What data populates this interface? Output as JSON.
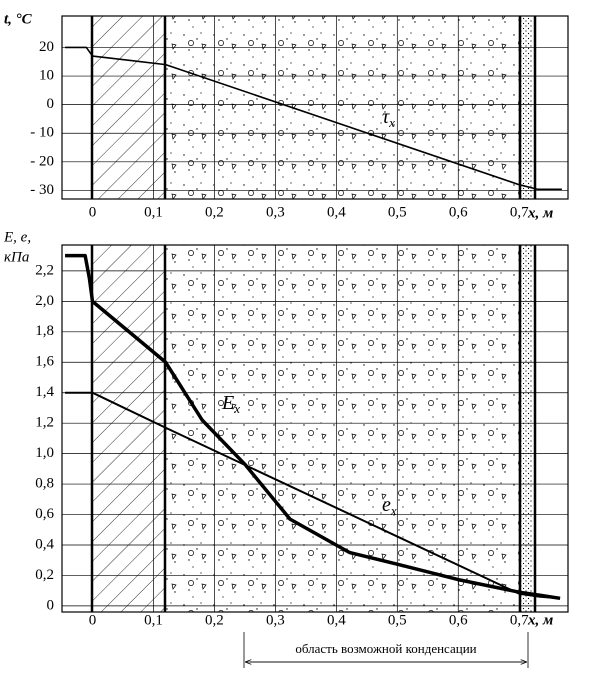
{
  "chart_data": [
    {
      "type": "line",
      "ylabel": "t, °C",
      "xlabel": "x, м",
      "xlim": [
        -0.05,
        0.78
      ],
      "ylim": [
        -33,
        31
      ],
      "grid": true,
      "xticks": [
        0,
        {
          "value": 0.1,
          "label": "0,1"
        },
        {
          "value": 0.2,
          "label": "0,2"
        },
        {
          "value": 0.3,
          "label": "0,3"
        },
        {
          "value": 0.4,
          "label": "0,4"
        },
        {
          "value": 0.5,
          "label": "0,5"
        },
        {
          "value": 0.6,
          "label": "0,6"
        },
        {
          "value": 0.7,
          "label": "0,7"
        }
      ],
      "yticks": [
        20,
        10,
        0,
        {
          "value": -10,
          "label": "- 10"
        },
        {
          "value": -20,
          "label": "- 20"
        },
        {
          "value": -30,
          "label": "- 30"
        }
      ],
      "series": [
        {
          "name": "τ",
          "subscript": "x",
          "color": "#000000",
          "line_width": 1.6,
          "x": [
            -0.045,
            -0.01,
            0,
            0.12,
            0.7,
            0.73,
            0.77
          ],
          "values": [
            20,
            20,
            17,
            14,
            -28,
            -29.6,
            -29.6
          ]
        }
      ]
    },
    {
      "type": "line",
      "ylabel": [
        "E, e,",
        "кПа"
      ],
      "xlabel": "x, м",
      "xlim": [
        -0.05,
        0.78
      ],
      "ylim": [
        -0.04,
        2.37
      ],
      "grid": true,
      "xticks": [
        0,
        {
          "value": 0.1,
          "label": "0,1"
        },
        {
          "value": 0.2,
          "label": "0,2"
        },
        {
          "value": 0.3,
          "label": "0,3"
        },
        {
          "value": 0.4,
          "label": "0,4"
        },
        {
          "value": 0.5,
          "label": "0,5"
        },
        {
          "value": 0.6,
          "label": "0,6"
        },
        {
          "value": 0.7,
          "label": "0,7"
        }
      ],
      "yticks": [
        0,
        {
          "value": 0.2,
          "label": "0,2"
        },
        {
          "value": 0.4,
          "label": "0,4"
        },
        {
          "value": 0.6,
          "label": "0,6"
        },
        {
          "value": 0.8,
          "label": "0,8"
        },
        {
          "value": 1.0,
          "label": "1,0"
        },
        {
          "value": 1.2,
          "label": "1,2"
        },
        {
          "value": 1.4,
          "label": "1,4"
        },
        {
          "value": 1.6,
          "label": "1,6"
        },
        {
          "value": 1.8,
          "label": "1,8"
        },
        {
          "value": 2.0,
          "label": "2,0"
        },
        {
          "value": 2.2,
          "label": "2,2"
        }
      ],
      "annotation": "область возможной конденсации",
      "series": [
        {
          "name": "E",
          "subscript": "x",
          "color": "#000000",
          "line_width": 3.5,
          "x": [
            -0.045,
            -0.012,
            -0.005,
            0,
            0.12,
            0.18,
            0.25,
            0.324,
            0.422,
            0.504,
            0.603,
            0.7,
            0.734,
            0.767
          ],
          "values": [
            2.3,
            2.3,
            2.15,
            2.0,
            1.6,
            1.22,
            0.93,
            0.57,
            0.35,
            0.27,
            0.17,
            0.09,
            0.07,
            0.05
          ]
        },
        {
          "name": "e",
          "subscript": "x",
          "color": "#000000",
          "line_width": 2,
          "x": [
            -0.045,
            0,
            0.12,
            0.7,
            0.734,
            0.767
          ],
          "values": [
            1.4,
            1.4,
            1.17,
            0.08,
            0.06,
            0.05
          ]
        }
      ]
    }
  ]
}
